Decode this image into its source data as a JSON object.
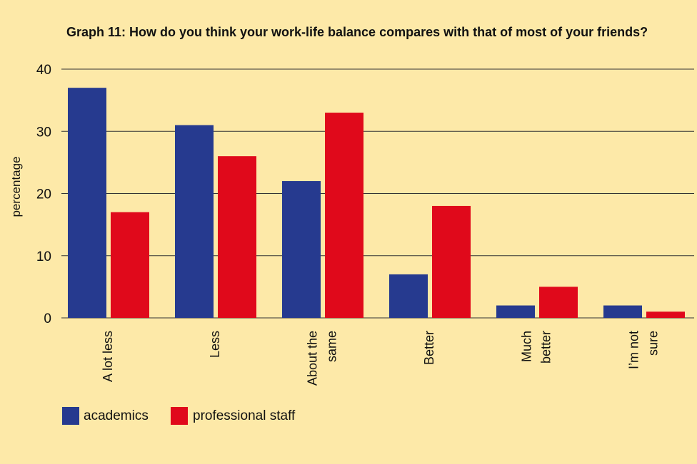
{
  "colors": {
    "background": "#fde9a8",
    "academics": "#263a8f",
    "professional_staff": "#e0091b",
    "grid": "#333333"
  },
  "chart_data": {
    "type": "bar",
    "title": "Graph 11: How do you think your work-life balance compares with that of most of your friends?",
    "xlabel": "",
    "ylabel": "percentage",
    "ylim": [
      0,
      40
    ],
    "yticks": [
      0,
      10,
      20,
      30,
      40
    ],
    "grid": true,
    "legend_position": "bottom-left",
    "categories": [
      [
        "A lot less"
      ],
      [
        "Less"
      ],
      [
        "About the",
        "same"
      ],
      [
        "Better"
      ],
      [
        "Much",
        "better"
      ],
      [
        "I’m not",
        "sure"
      ]
    ],
    "series": [
      {
        "name": "academics",
        "values": [
          37,
          31,
          22,
          7,
          2,
          2
        ]
      },
      {
        "name": "professional staff",
        "values": [
          17,
          26,
          33,
          18,
          5,
          1
        ]
      }
    ]
  }
}
